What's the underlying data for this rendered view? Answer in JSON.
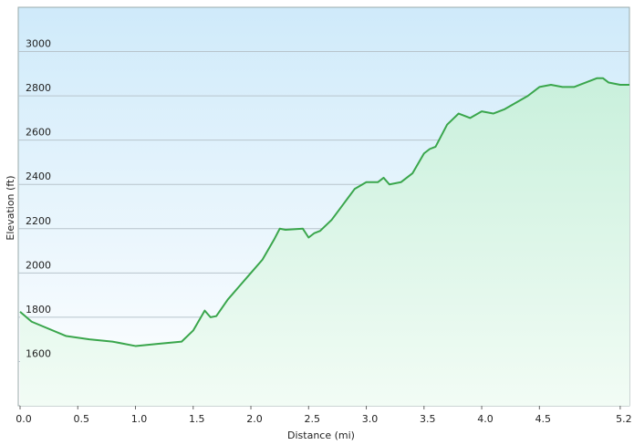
{
  "chart_data": {
    "type": "area",
    "xlabel": "Distance  (mi)",
    "ylabel": "Elevation (ft)",
    "x": [
      0,
      0.1,
      0.4,
      0.6,
      0.8,
      1.0,
      1.2,
      1.4,
      1.5,
      1.6,
      1.65,
      1.7,
      1.8,
      1.9,
      2.0,
      2.1,
      2.2,
      2.25,
      2.3,
      2.45,
      2.5,
      2.55,
      2.6,
      2.7,
      2.8,
      2.9,
      3.0,
      3.1,
      3.15,
      3.2,
      3.3,
      3.4,
      3.5,
      3.55,
      3.6,
      3.7,
      3.8,
      3.9,
      4.0,
      4.1,
      4.2,
      4.3,
      4.4,
      4.5,
      4.6,
      4.7,
      4.8,
      4.9,
      5.0,
      5.05,
      5.1,
      5.2,
      5.28
    ],
    "values": [
      1825,
      1780,
      1715,
      1700,
      1690,
      1670,
      1680,
      1690,
      1740,
      1830,
      1800,
      1805,
      1880,
      1940,
      2000,
      2060,
      2150,
      2200,
      2195,
      2200,
      2160,
      2180,
      2190,
      2240,
      2310,
      2380,
      2410,
      2410,
      2430,
      2400,
      2410,
      2450,
      2540,
      2560,
      2570,
      2670,
      2720,
      2700,
      2730,
      2720,
      2740,
      2770,
      2800,
      2840,
      2850,
      2840,
      2840,
      2860,
      2880,
      2880,
      2860,
      2850,
      2850
    ],
    "color": "#3aa64c",
    "xlim": [
      0,
      5.28
    ],
    "ylim": [
      1400,
      3200
    ],
    "xticks": [
      {
        "value": 0,
        "label": "0.0"
      },
      0.5,
      {
        "value": 1,
        "label": "1.0"
      },
      1.5,
      {
        "value": 2,
        "label": "2.0"
      },
      2.5,
      {
        "value": 3,
        "label": "3.0"
      },
      3.5,
      {
        "value": 4,
        "label": "4.0"
      },
      4.5,
      5.2
    ],
    "yticks": [
      1600,
      1800,
      2000,
      2200,
      2400,
      2600,
      2800,
      3000
    ],
    "grid": true
  }
}
